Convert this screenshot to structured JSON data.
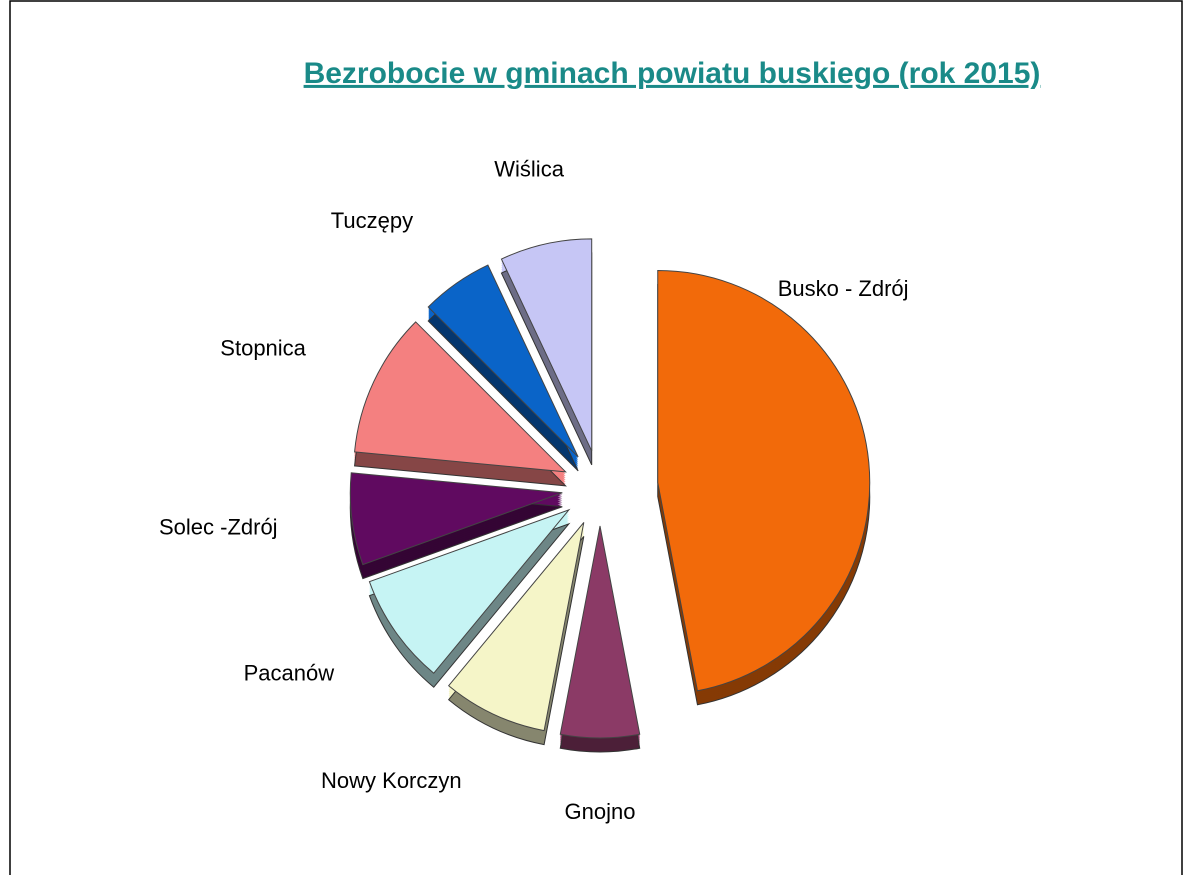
{
  "chart_data": {
    "type": "pie",
    "title": "Bezrobocie w gminach powiatu buskiego (rok 2015)",
    "categories": [
      "Busko -  Zdrój",
      "Gnojno",
      "Nowy Korczyn",
      "Pacanów",
      "Solec -Zdrój",
      "Stopnica",
      "Tuczępy",
      "Wiślica"
    ],
    "values": [
      47,
      6,
      8,
      8.5,
      7,
      11,
      5.5,
      7
    ],
    "colors": [
      "#f26a0a",
      "#8b3a66",
      "#f5f5c8",
      "#c6f4f4",
      "#600a60",
      "#f48080",
      "#0a64c8",
      "#c6c6f5"
    ]
  }
}
